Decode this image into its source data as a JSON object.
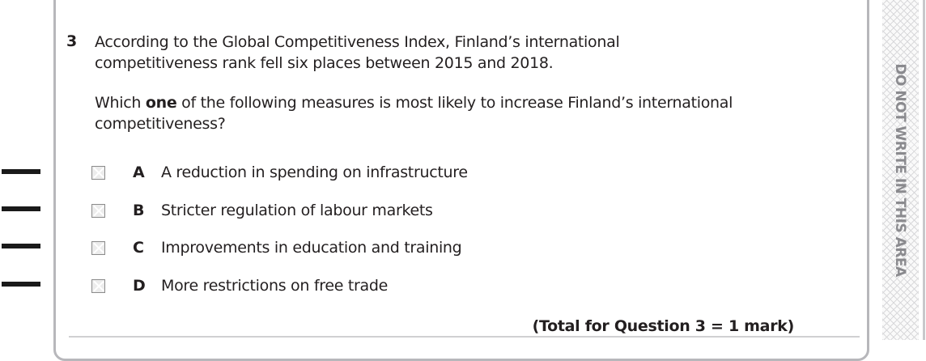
{
  "question": {
    "number": "3",
    "stem_line1": "According to the Global Competitiveness Index, Finland’s international",
    "stem_line2": "competitiveness rank fell six places between 2015 and 2018.",
    "prompt_pre": "Which ",
    "prompt_bold": "one",
    "prompt_post": " of the following measures is most likely to increase Finland’s international",
    "prompt_line2": "competitiveness?",
    "options": [
      {
        "letter": "A",
        "text": "A reduction in spending on infrastructure",
        "checked": false
      },
      {
        "letter": "B",
        "text": "Stricter regulation of labour markets",
        "checked": false
      },
      {
        "letter": "C",
        "text": "Improvements in education and training",
        "checked": false
      },
      {
        "letter": "D",
        "text": "More restrictions on free trade",
        "checked": false
      }
    ],
    "total": "(Total for Question 3 = 1 mark)"
  },
  "margin": {
    "text": "DO NOT WRITE IN THIS AREA"
  }
}
